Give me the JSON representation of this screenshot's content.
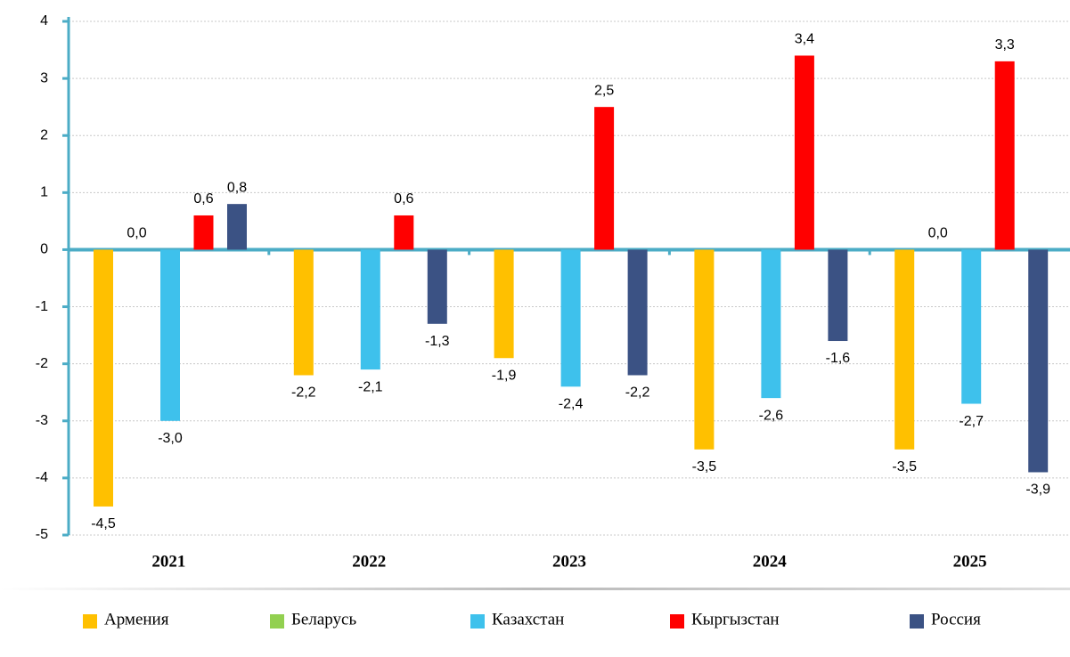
{
  "chart_data": {
    "type": "bar",
    "categories": [
      "2021",
      "2022",
      "2023",
      "2024",
      "2025"
    ],
    "series": [
      {
        "name": "Армения",
        "color": "#FFC000",
        "values": [
          -4.5,
          -2.2,
          -1.9,
          -3.5,
          -3.5
        ],
        "value_labels": [
          "-4,5",
          "-2,2",
          "-1,9",
          "-3,5",
          "-3,5"
        ]
      },
      {
        "name": "Беларусь",
        "color": "#92D050",
        "values": [
          0.0,
          null,
          null,
          null,
          0.0
        ],
        "value_labels": [
          "0,0",
          null,
          null,
          null,
          "0,0"
        ]
      },
      {
        "name": "Казахстан",
        "color": "#3EC1EC",
        "values": [
          -3.0,
          -2.1,
          -2.4,
          -2.6,
          -2.7
        ],
        "value_labels": [
          "-3,0",
          "-2,1",
          "-2,4",
          "-2,6",
          "-2,7"
        ]
      },
      {
        "name": "Кыргызстан",
        "color": "#FF0000",
        "values": [
          0.6,
          0.6,
          2.5,
          3.4,
          3.3
        ],
        "value_labels": [
          "0,6",
          "0,6",
          "2,5",
          "3,4",
          "3,3"
        ]
      },
      {
        "name": "Россия",
        "color": "#3B5284",
        "values": [
          0.8,
          -1.3,
          -2.2,
          -1.6,
          -3.9
        ],
        "value_labels": [
          "0,8",
          "-1,3",
          "-2,2",
          "-1,6",
          "-3,9"
        ]
      }
    ],
    "ylim": [
      -5,
      4
    ],
    "yticks": [
      -5,
      -4,
      -3,
      -2,
      -1,
      0,
      1,
      2,
      3,
      4
    ],
    "grid": true
  }
}
